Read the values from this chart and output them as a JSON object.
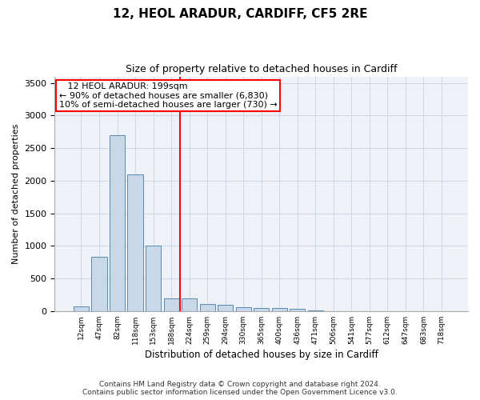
{
  "title1": "12, HEOL ARADUR, CARDIFF, CF5 2RE",
  "title2": "Size of property relative to detached houses in Cardiff",
  "xlabel": "Distribution of detached houses by size in Cardiff",
  "ylabel": "Number of detached properties",
  "categories": [
    "12sqm",
    "47sqm",
    "82sqm",
    "118sqm",
    "153sqm",
    "188sqm",
    "224sqm",
    "259sqm",
    "294sqm",
    "330sqm",
    "365sqm",
    "400sqm",
    "436sqm",
    "471sqm",
    "506sqm",
    "541sqm",
    "577sqm",
    "612sqm",
    "647sqm",
    "683sqm",
    "718sqm"
  ],
  "values": [
    70,
    830,
    2700,
    2100,
    1000,
    195,
    190,
    110,
    100,
    55,
    45,
    50,
    30,
    10,
    2,
    1,
    1,
    0,
    0,
    0,
    0
  ],
  "bar_color": "#c8d8e8",
  "bar_edge_color": "#5a8ab0",
  "grid_color": "#d0d8e8",
  "background_color": "#eef2f8",
  "red_line_x": 5.5,
  "annotation_text": "   12 HEOL ARADUR: 199sqm\n← 90% of detached houses are smaller (6,830)\n10% of semi-detached houses are larger (730) →",
  "footnote1": "Contains HM Land Registry data © Crown copyright and database right 2024.",
  "footnote2": "Contains public sector information licensed under the Open Government Licence v3.0.",
  "ylim": [
    0,
    3600
  ],
  "yticks": [
    0,
    500,
    1000,
    1500,
    2000,
    2500,
    3000,
    3500
  ]
}
